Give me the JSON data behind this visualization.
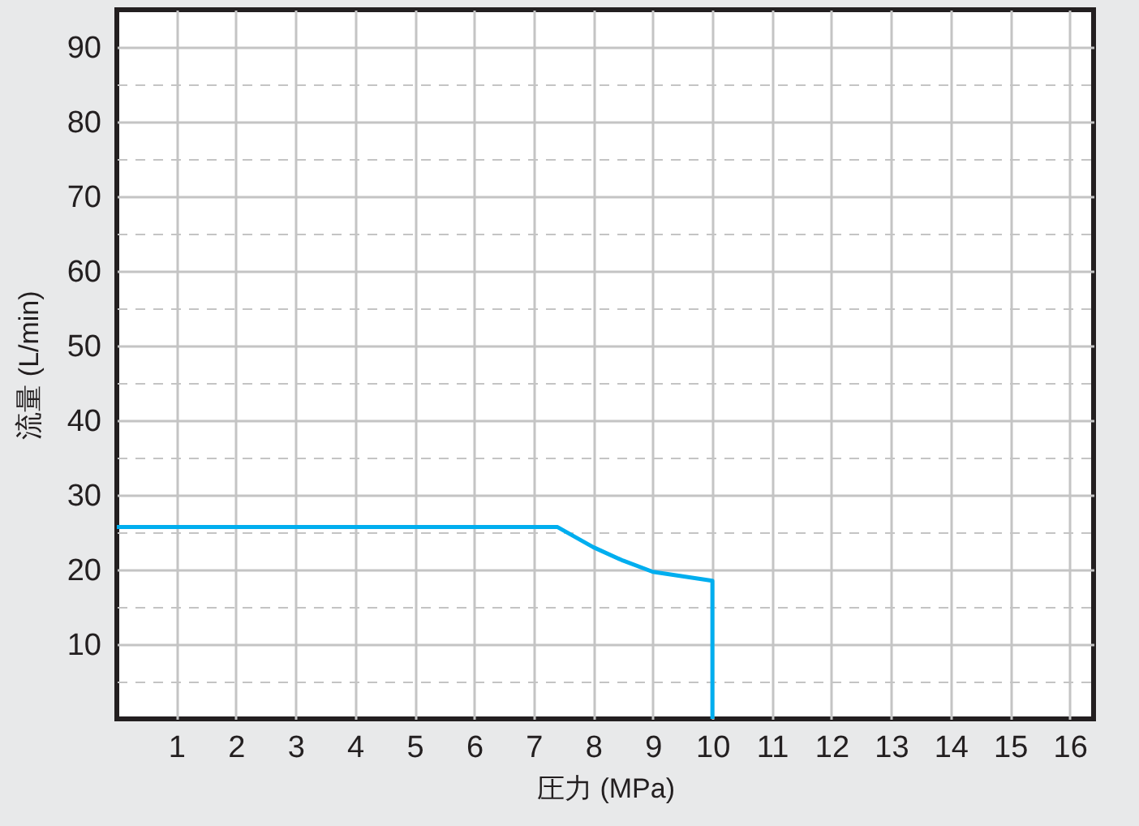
{
  "chart_data": {
    "type": "line",
    "xlabel": "圧力 (MPa)",
    "ylabel": "流量 (L/min)",
    "xlim": [
      0,
      16.4
    ],
    "ylim": [
      0,
      95
    ],
    "xticks": [
      1,
      2,
      3,
      4,
      5,
      6,
      7,
      8,
      9,
      10,
      11,
      12,
      13,
      14,
      15,
      16
    ],
    "yticks": [
      {
        "value": 5,
        "label": null
      },
      10,
      {
        "value": 15,
        "label": null
      },
      20,
      {
        "value": 25,
        "label": null
      },
      30,
      {
        "value": 35,
        "label": null
      },
      40,
      {
        "value": 45,
        "label": null
      },
      50,
      {
        "value": 55,
        "label": null
      },
      60,
      {
        "value": 65,
        "label": null
      },
      70,
      {
        "value": 75,
        "label": null
      },
      80,
      {
        "value": 85,
        "label": null
      },
      90
    ],
    "grid": true,
    "series": [
      {
        "color": "#00aeef",
        "x": [
          0,
          7.4,
          8,
          8.5,
          9,
          9.5,
          10,
          10
        ],
        "values": [
          25.7,
          25.7,
          23.0,
          21.2,
          19.7,
          19.1,
          18.5,
          0
        ]
      }
    ]
  }
}
